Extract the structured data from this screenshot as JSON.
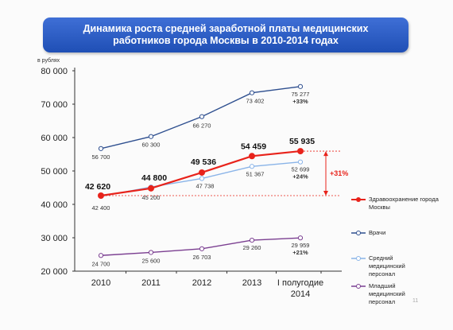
{
  "slide": {
    "title": "Динамика роста средней заработной платы медицинских работников города Москвы в 2010-2014 годах",
    "unit_label": "в рублях",
    "page_number": "11"
  },
  "chart_data": {
    "type": "line",
    "title": "Динамика роста средней заработной платы медицинских работников города Москвы в 2010-2014 годах",
    "ylabel": "в рублях",
    "categories": [
      "2010",
      "2011",
      "2012",
      "2013",
      "I полугодие 2014"
    ],
    "ylim": [
      20000,
      80000
    ],
    "yticks": [
      "20 000",
      "30 000",
      "40 000",
      "50 000",
      "60 000",
      "70 000",
      "80 000"
    ],
    "ytick_values": [
      20000,
      30000,
      40000,
      50000,
      60000,
      70000,
      80000
    ],
    "grid": false,
    "legend_position": "right",
    "series": [
      {
        "name": "Здравоохранение города Москвы",
        "color": "#e8231b",
        "values": [
          42620,
          44800,
          49536,
          54459,
          55935
        ],
        "labels": [
          "42 620",
          "44 800",
          "49 536",
          "54 459",
          "55 935"
        ]
      },
      {
        "name": "Врачи",
        "color": "#2e4f8f",
        "values": [
          56700,
          60300,
          66270,
          73402,
          75277
        ],
        "labels": [
          "56 700",
          "60 300",
          "66 270",
          "73 402",
          "75 277"
        ],
        "growth": "+33%"
      },
      {
        "name": "Средний медицинский персонал",
        "color": "#8ab4e8",
        "values": [
          42400,
          45200,
          47738,
          51367,
          52699
        ],
        "labels": [
          "42 400",
          "45 200",
          "47 738",
          "51 367",
          "52 699"
        ],
        "growth": "+24%"
      },
      {
        "name": "Младший медицинский персонал",
        "color": "#7b3f91",
        "values": [
          24700,
          25600,
          26703,
          29260,
          29959
        ],
        "labels": [
          "24 700",
          "25 600",
          "26 703",
          "29 260",
          "29 959"
        ],
        "growth": "+21%"
      }
    ],
    "annotation": {
      "text": "+31%",
      "color": "#e8231b"
    }
  }
}
